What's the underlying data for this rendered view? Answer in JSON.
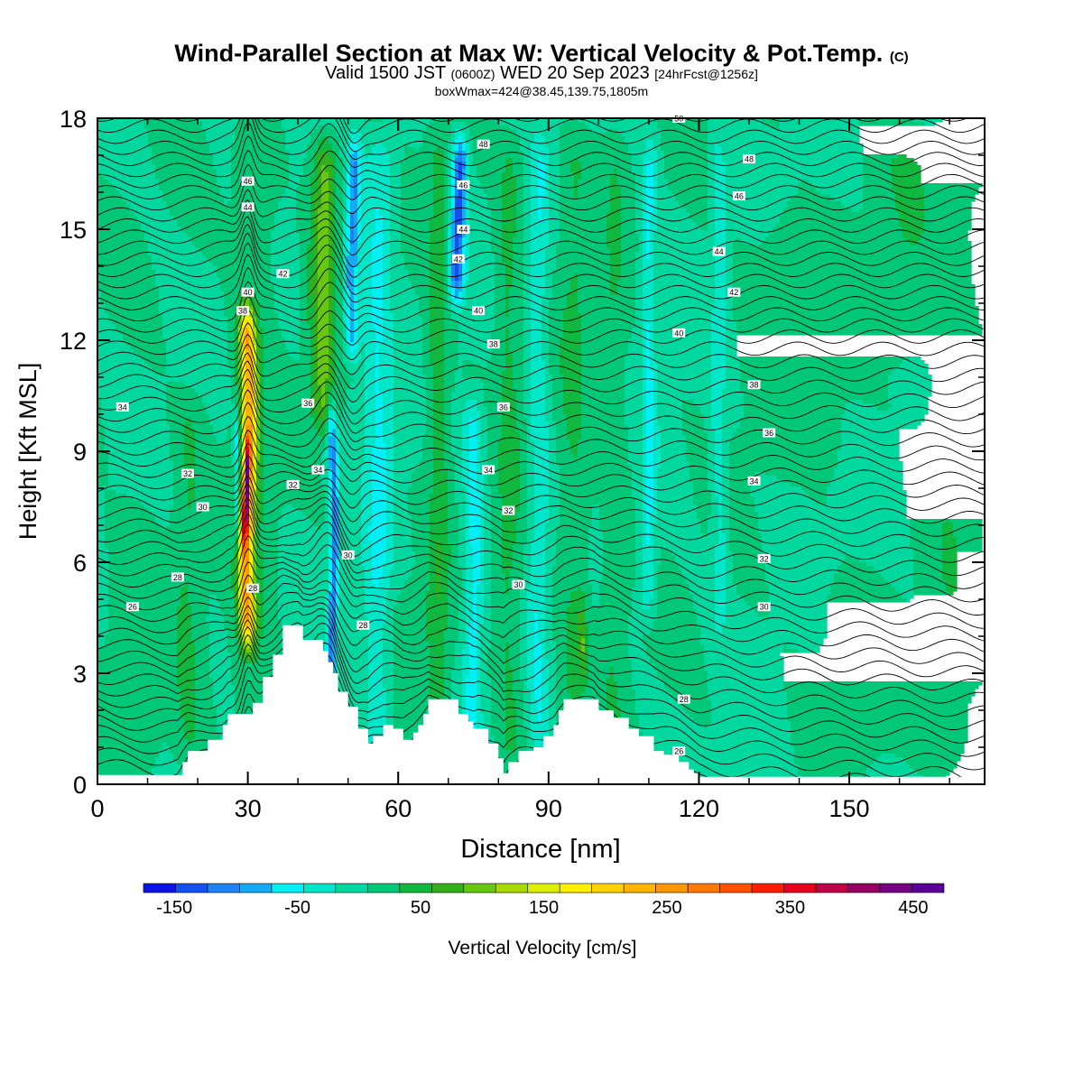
{
  "chart_data": {
    "type": "heatmap",
    "title": "Wind-Parallel Section at Max W: Vertical Velocity & Pot.Temp.",
    "title_mark": "(C)",
    "subtitle_parts": [
      "Valid 1500 JST",
      "(0600Z)",
      "WED 20 Sep 2023",
      "[24hrFcst@1256z]"
    ],
    "subline": "boxWmax=424@38.45,139.75,1805m",
    "xlabel": "Distance [nm]",
    "ylabel": "Height [Kft MSL]",
    "xlim": [
      0,
      177
    ],
    "ylim": [
      0,
      18
    ],
    "xticks": [
      0,
      30,
      60,
      90,
      120,
      150
    ],
    "yticks": [
      0,
      3,
      6,
      9,
      12,
      15,
      18
    ],
    "colorbar": {
      "label": "Vertical Velocity [cm/s]",
      "ticks": [
        -150,
        -50,
        50,
        150,
        250,
        350,
        450
      ],
      "range": [
        -175,
        475
      ],
      "colors": [
        "#0a14e6",
        "#1450f0",
        "#1e82f5",
        "#14aaf5",
        "#00f0f5",
        "#00e6c8",
        "#00d8a0",
        "#00c878",
        "#10b840",
        "#34b01c",
        "#68c810",
        "#a8dc00",
        "#dcf000",
        "#fff000",
        "#ffd200",
        "#ffb400",
        "#ff9600",
        "#ff7800",
        "#ff5000",
        "#ff1e00",
        "#e6001e",
        "#be0046",
        "#960064",
        "#780082",
        "#5a0096"
      ]
    },
    "contour_field": "potential temperature",
    "contour_labels": [
      {
        "x": 5,
        "y": 10.2,
        "t": "34"
      },
      {
        "x": 18,
        "y": 8.4,
        "t": "32"
      },
      {
        "x": 21,
        "y": 7.5,
        "t": "30"
      },
      {
        "x": 16,
        "y": 5.6,
        "t": "28"
      },
      {
        "x": 7,
        "y": 4.8,
        "t": "26"
      },
      {
        "x": 31,
        "y": 5.3,
        "t": "28"
      },
      {
        "x": 30,
        "y": 16.3,
        "t": "46"
      },
      {
        "x": 30,
        "y": 15.6,
        "t": "44"
      },
      {
        "x": 37,
        "y": 13.8,
        "t": "42"
      },
      {
        "x": 30,
        "y": 13.3,
        "t": "40"
      },
      {
        "x": 29,
        "y": 12.8,
        "t": "38"
      },
      {
        "x": 42,
        "y": 10.3,
        "t": "36"
      },
      {
        "x": 44,
        "y": 8.5,
        "t": "34"
      },
      {
        "x": 39,
        "y": 8.1,
        "t": "32"
      },
      {
        "x": 50,
        "y": 6.2,
        "t": "30"
      },
      {
        "x": 53,
        "y": 4.3,
        "t": "28"
      },
      {
        "x": 77,
        "y": 17.3,
        "t": "48"
      },
      {
        "x": 73,
        "y": 16.2,
        "t": "46"
      },
      {
        "x": 73,
        "y": 15.0,
        "t": "44"
      },
      {
        "x": 72,
        "y": 14.2,
        "t": "42"
      },
      {
        "x": 76,
        "y": 12.8,
        "t": "40"
      },
      {
        "x": 79,
        "y": 11.9,
        "t": "38"
      },
      {
        "x": 81,
        "y": 10.2,
        "t": "36"
      },
      {
        "x": 78,
        "y": 8.5,
        "t": "34"
      },
      {
        "x": 82,
        "y": 7.4,
        "t": "32"
      },
      {
        "x": 84,
        "y": 5.4,
        "t": "30"
      },
      {
        "x": 116,
        "y": 18.0,
        "t": "50"
      },
      {
        "x": 130,
        "y": 16.9,
        "t": "48"
      },
      {
        "x": 128,
        "y": 15.9,
        "t": "46"
      },
      {
        "x": 124,
        "y": 14.4,
        "t": "44"
      },
      {
        "x": 127,
        "y": 13.3,
        "t": "42"
      },
      {
        "x": 116,
        "y": 12.2,
        "t": "40"
      },
      {
        "x": 131,
        "y": 10.8,
        "t": "38"
      },
      {
        "x": 134,
        "y": 9.5,
        "t": "36"
      },
      {
        "x": 131,
        "y": 8.2,
        "t": "34"
      },
      {
        "x": 133,
        "y": 6.1,
        "t": "32"
      },
      {
        "x": 133,
        "y": 4.8,
        "t": "30"
      },
      {
        "x": 117,
        "y": 2.3,
        "t": "28"
      },
      {
        "x": 116,
        "y": 0.9,
        "t": "26"
      }
    ],
    "terrain": [
      [
        0,
        0.25
      ],
      [
        16,
        0.25
      ],
      [
        17,
        0.6
      ],
      [
        18,
        0.9
      ],
      [
        22,
        1.2
      ],
      [
        25,
        1.6
      ],
      [
        26,
        1.9
      ],
      [
        29,
        1.9
      ],
      [
        31,
        2.2
      ],
      [
        33,
        2.9
      ],
      [
        35,
        3.5
      ],
      [
        37,
        4.3
      ],
      [
        40,
        4.3
      ],
      [
        41,
        3.9
      ],
      [
        44,
        3.9
      ],
      [
        45,
        3.6
      ],
      [
        46,
        3.3
      ],
      [
        47,
        3.0
      ],
      [
        48,
        2.5
      ],
      [
        50,
        2.1
      ],
      [
        52,
        1.5
      ],
      [
        54,
        1.1
      ],
      [
        55,
        1.3
      ],
      [
        57,
        1.6
      ],
      [
        59,
        1.5
      ],
      [
        61,
        1.2
      ],
      [
        63,
        1.4
      ],
      [
        64,
        1.6
      ],
      [
        65,
        1.9
      ],
      [
        66,
        2.3
      ],
      [
        70,
        2.3
      ],
      [
        72,
        1.9
      ],
      [
        74,
        1.7
      ],
      [
        75,
        1.5
      ],
      [
        76,
        1.5
      ],
      [
        78,
        1.1
      ],
      [
        80,
        0.7
      ],
      [
        81,
        0.3
      ],
      [
        82,
        0.6
      ],
      [
        84,
        0.9
      ],
      [
        87,
        1.0
      ],
      [
        89,
        1.3
      ],
      [
        91,
        1.6
      ],
      [
        92,
        2.0
      ],
      [
        93,
        2.3
      ],
      [
        99,
        2.3
      ],
      [
        100,
        2.0
      ],
      [
        103,
        1.8
      ],
      [
        106,
        1.5
      ],
      [
        108,
        1.3
      ],
      [
        111,
        0.9
      ],
      [
        113,
        0.8
      ],
      [
        116,
        0.6
      ],
      [
        118,
        0.4
      ],
      [
        119,
        0.3
      ],
      [
        120,
        0.2
      ],
      [
        177,
        0.2
      ]
    ]
  }
}
